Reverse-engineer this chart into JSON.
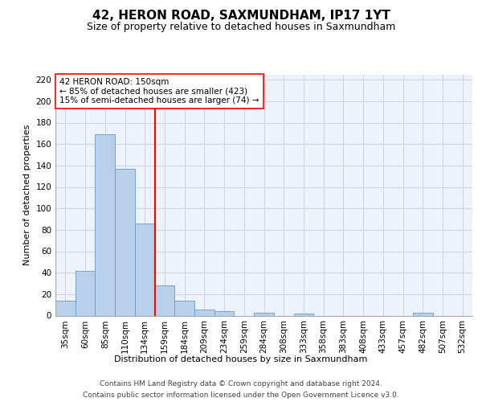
{
  "title": "42, HERON ROAD, SAXMUNDHAM, IP17 1YT",
  "subtitle": "Size of property relative to detached houses in Saxmundham",
  "xlabel": "Distribution of detached houses by size in Saxmundham",
  "ylabel": "Number of detached properties",
  "footnote1": "Contains HM Land Registry data © Crown copyright and database right 2024.",
  "footnote2": "Contains public sector information licensed under the Open Government Licence v3.0.",
  "bar_labels": [
    "35sqm",
    "60sqm",
    "85sqm",
    "110sqm",
    "134sqm",
    "159sqm",
    "184sqm",
    "209sqm",
    "234sqm",
    "259sqm",
    "284sqm",
    "308sqm",
    "333sqm",
    "358sqm",
    "383sqm",
    "408sqm",
    "433sqm",
    "457sqm",
    "482sqm",
    "507sqm",
    "532sqm"
  ],
  "bar_values": [
    14,
    42,
    169,
    137,
    86,
    28,
    14,
    6,
    4,
    0,
    3,
    0,
    2,
    0,
    0,
    0,
    0,
    0,
    3,
    0,
    0
  ],
  "bar_color": "#b8d0ea",
  "bar_edge_color": "#6699cc",
  "vline_color": "red",
  "vline_pos": 4.5,
  "ylim": [
    0,
    225
  ],
  "yticks": [
    0,
    20,
    40,
    60,
    80,
    100,
    120,
    140,
    160,
    180,
    200,
    220
  ],
  "annotation_line1": "42 HERON ROAD: 150sqm",
  "annotation_line2": "← 85% of detached houses are smaller (423)",
  "annotation_line3": "15% of semi-detached houses are larger (74) →",
  "bg_color": "#eef2fa",
  "grid_color": "#ccd6e8",
  "title_fontsize": 11,
  "subtitle_fontsize": 9,
  "ylabel_fontsize": 8,
  "xlabel_fontsize": 8,
  "tick_fontsize": 7.5,
  "annot_fontsize": 7.5,
  "footnote_fontsize": 6.5
}
